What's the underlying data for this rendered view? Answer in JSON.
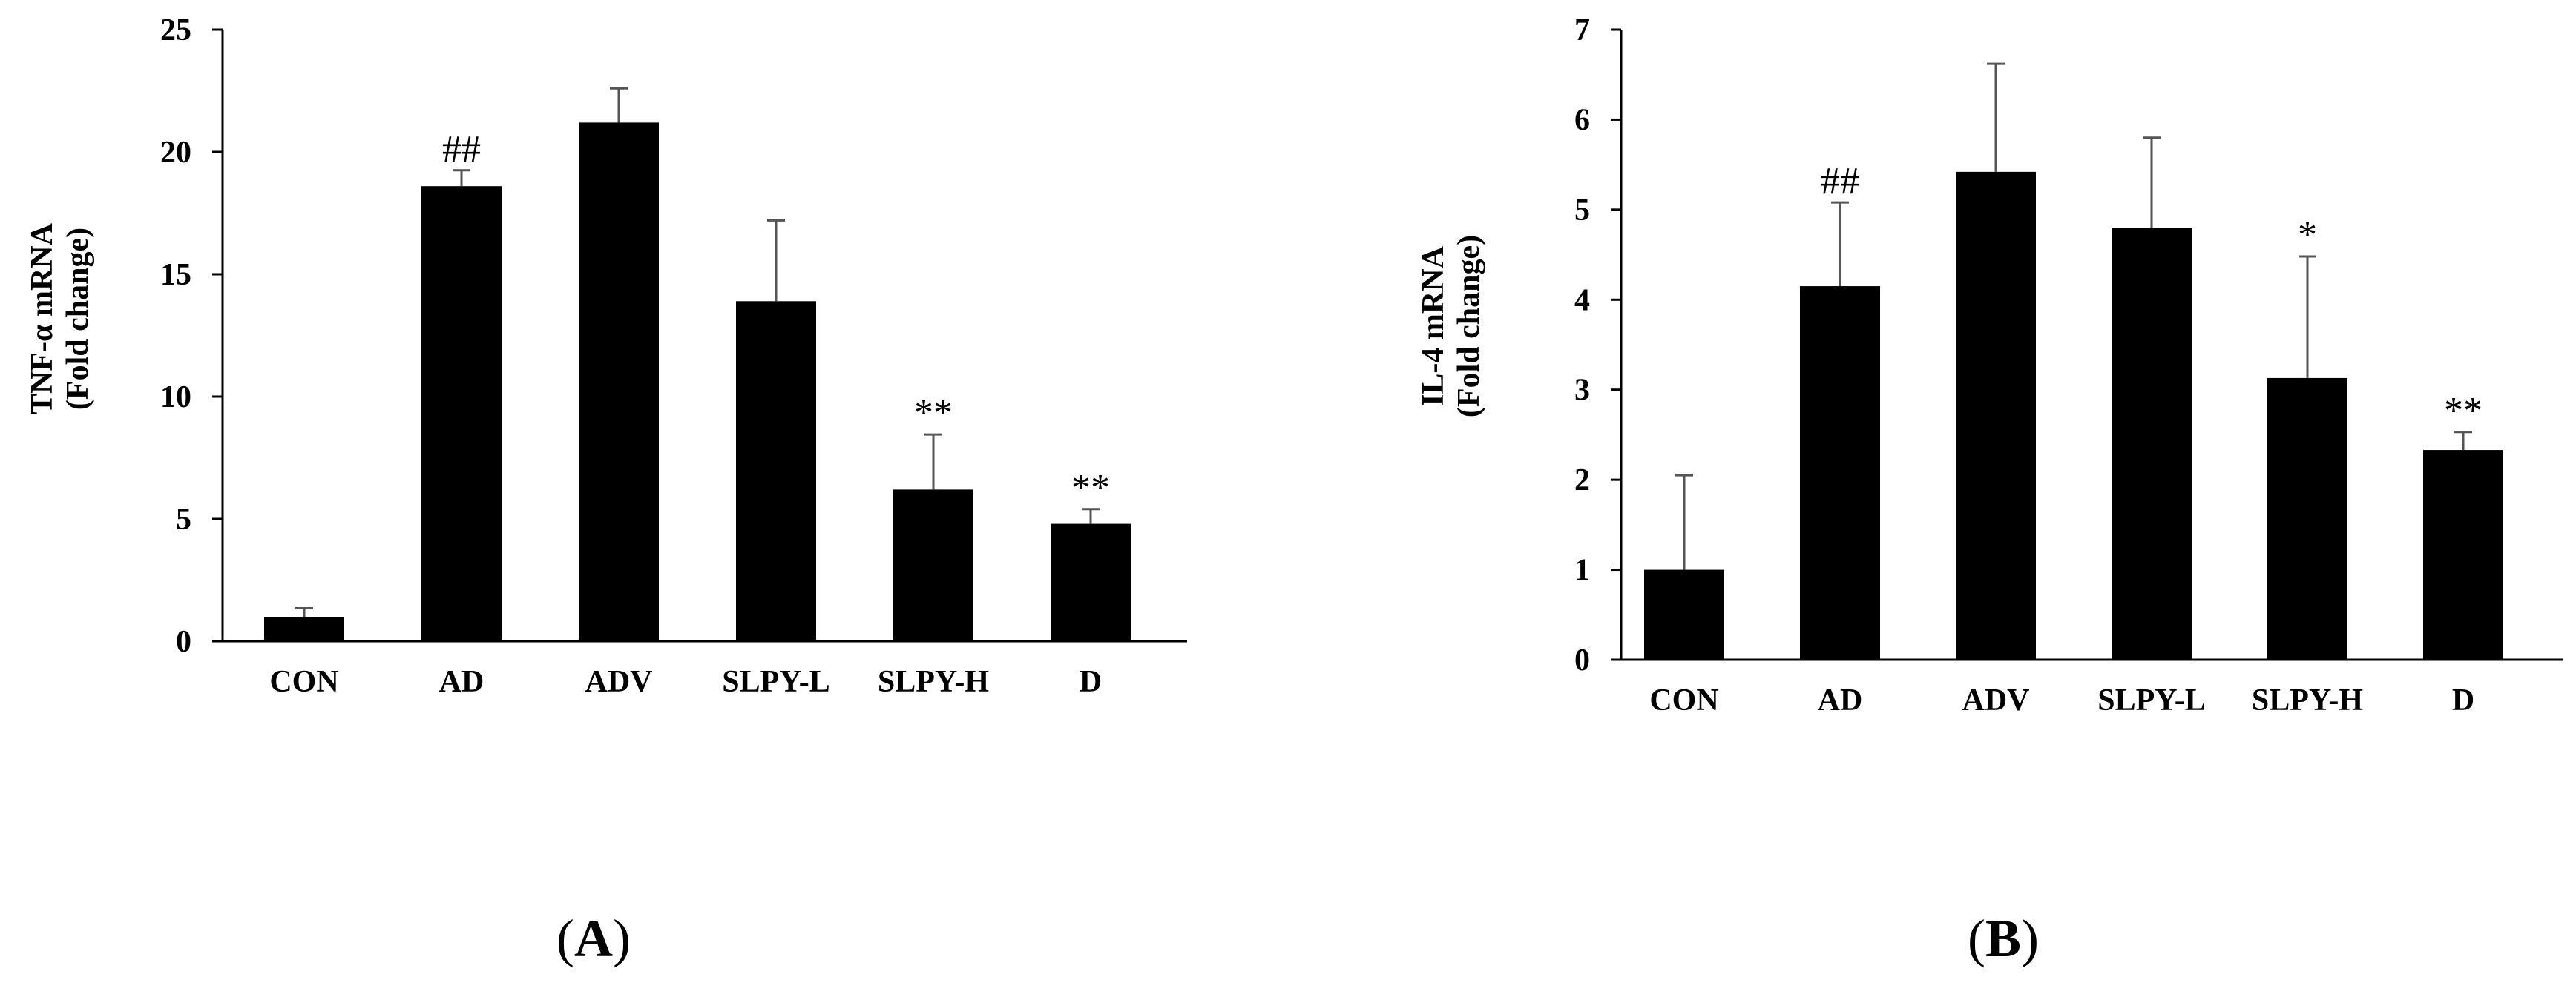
{
  "figure": {
    "panel_labels": [
      "A",
      "B"
    ]
  },
  "chart_data": [
    {
      "type": "bar",
      "categories": [
        "CON",
        "AD",
        "ADV",
        "SLPY-L",
        "SLPY-H",
        "D"
      ],
      "values": [
        1.0,
        18.6,
        21.2,
        13.9,
        6.2,
        4.8
      ],
      "error_up": [
        0.35,
        0.65,
        1.4,
        3.3,
        2.25,
        0.6
      ],
      "annotations": [
        "",
        "##",
        "",
        "",
        "**",
        "**"
      ],
      "ylabel_line1": "TNF-α mRNA",
      "ylabel_line2": "(Fold change)",
      "ylim": [
        0,
        25
      ],
      "yticks": [
        0,
        5,
        10,
        15,
        20,
        25
      ],
      "bar_color": "#000000",
      "grid": false
    },
    {
      "type": "bar",
      "categories": [
        "CON",
        "AD",
        "ADV",
        "SLPY-L",
        "SLPY-H",
        "D"
      ],
      "values": [
        1.0,
        4.15,
        5.42,
        4.8,
        3.13,
        2.33
      ],
      "error_up": [
        1.05,
        0.93,
        1.2,
        1.0,
        1.35,
        0.2
      ],
      "annotations": [
        "",
        "##",
        "",
        "",
        "*",
        "**"
      ],
      "ylabel_line1": "IL-4 mRNA",
      "ylabel_line2": "(Fold change)",
      "ylim": [
        0,
        7
      ],
      "yticks": [
        0,
        1,
        2,
        3,
        4,
        5,
        6,
        7
      ],
      "bar_color": "#000000",
      "grid": false
    }
  ]
}
